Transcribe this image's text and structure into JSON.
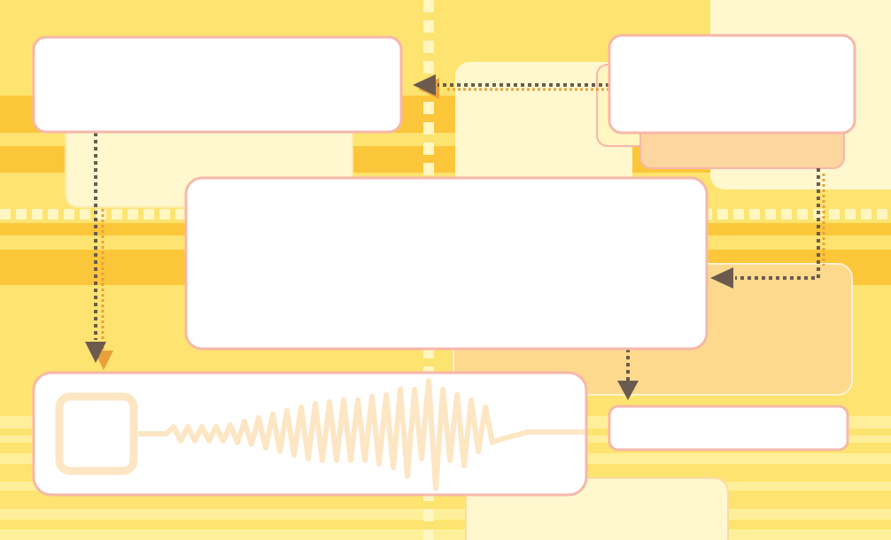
{
  "colors": {
    "background": "#fde36f",
    "stripe_dark": "#fcc63a",
    "stripe_light": "#fef09a",
    "panel_light": "#fff8cf",
    "panel_peach": "#fdd59e",
    "box_fill": "#ffffff",
    "box_border": "#f7b7a9",
    "connector": "#6b5b4e",
    "connector_shadow": "#e8a13a",
    "waveform": "#fde6c4",
    "divider": "#fff6c2"
  },
  "boxes": {
    "top_left": {
      "label": ""
    },
    "top_right": {
      "label": ""
    },
    "center": {
      "label": ""
    },
    "bottom_left": {
      "label": ""
    },
    "bottom_right": {
      "label": ""
    }
  },
  "icons": {
    "waveform": "waveform-icon",
    "square": "square-icon"
  }
}
